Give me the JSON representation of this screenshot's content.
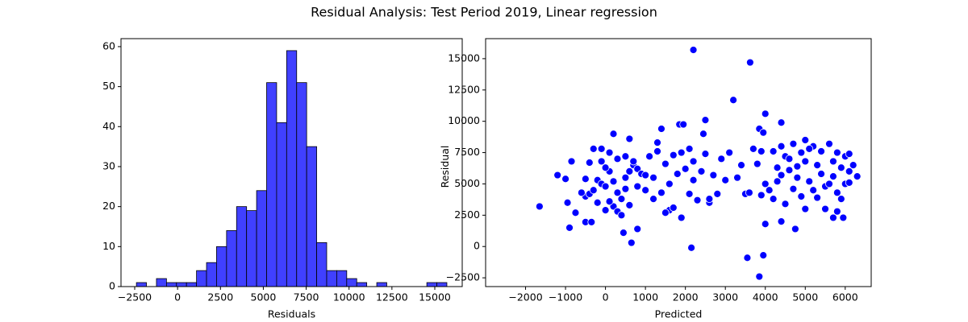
{
  "title": "Residual Analysis: Test Period 2019, Linear regression",
  "chart_data": [
    {
      "type": "histogram",
      "xlabel": "Residuals",
      "color": "#4040ff",
      "edgecolor": "#000000",
      "bins": [
        -2400,
        -1816,
        -1232,
        -648,
        -64,
        520,
        1104,
        1688,
        2272,
        2856,
        3440,
        4024,
        4608,
        5192,
        5776,
        6360,
        6944,
        7528,
        8112,
        8696,
        9280,
        9864,
        10448,
        11032,
        11616,
        12200,
        12784,
        13368,
        13952,
        14536,
        15120,
        15704
      ],
      "counts": [
        1,
        0,
        2,
        1,
        1,
        1,
        4,
        6,
        10,
        14,
        20,
        19,
        24,
        51,
        41,
        59,
        51,
        35,
        11,
        4,
        4,
        2,
        1,
        0,
        1,
        0,
        0,
        0,
        0,
        1,
        1
      ],
      "xlim": [
        -3300,
        16600
      ],
      "xticks": [
        {
          "value": -2500,
          "label": "−2500"
        },
        0,
        2500,
        5000,
        7500,
        10000,
        12500,
        15000
      ],
      "ylim": [
        0,
        62
      ],
      "yticks": [
        0,
        10,
        20,
        30,
        40,
        50,
        60
      ]
    },
    {
      "type": "scatter",
      "xlabel": "Predicted",
      "ylabel": "Residual",
      "color": "#0000ff",
      "x": [
        2200,
        3620,
        3200,
        4000,
        2500,
        3850,
        4400,
        3950,
        1400,
        1850,
        1950,
        200,
        2450,
        600,
        -1650,
        -900,
        -500,
        -350,
        450,
        650,
        800,
        2150,
        3550,
        3950,
        3850,
        4000,
        4750,
        4400,
        5700,
        5950,
        -1000,
        -1200,
        -850,
        -950,
        -750,
        1900,
        1600,
        -500,
        -400,
        -300,
        -200,
        -100,
        0,
        100,
        200,
        300,
        400,
        500,
        600,
        700,
        800,
        900,
        -300,
        -100,
        100,
        300,
        500,
        700,
        -400,
        0,
        200,
        300,
        400,
        100,
        -200,
        600,
        800,
        0,
        -600,
        -500,
        -100,
        500,
        1000,
        1100,
        1200,
        1300,
        1400,
        1500,
        1600,
        1700,
        1800,
        1900,
        2000,
        2100,
        2100,
        2200,
        2300,
        2400,
        2500,
        2600,
        2700,
        2800,
        2900,
        3000,
        3100,
        1300,
        1500,
        1700,
        2200,
        1000,
        1200,
        2600,
        3300,
        3400,
        3500,
        3600,
        3700,
        3800,
        3900,
        4000,
        4100,
        4200,
        4300,
        4400,
        4500,
        4600,
        4700,
        4800,
        4900,
        5000,
        5000,
        5100,
        5200,
        5300,
        5400,
        5500,
        5500,
        5600,
        5600,
        5700,
        5800,
        5800,
        5900,
        6000,
        6000,
        6100,
        6200,
        6300,
        4200,
        4500,
        4700,
        5300,
        5900,
        6100,
        4800,
        5100,
        4400,
        4600,
        5400,
        5700,
        5200,
        4900,
        6100,
        5000,
        4300,
        3900,
        5800
      ],
      "values": [
        15700,
        14700,
        11700,
        10600,
        10100,
        9400,
        9900,
        9100,
        9400,
        9750,
        9750,
        9000,
        9000,
        8600,
        3200,
        1500,
        1950,
        1950,
        1100,
        300,
        1400,
        -100,
        -900,
        -700,
        -2400,
        1800,
        1400,
        2000,
        2300,
        2300,
        5400,
        5700,
        6800,
        3500,
        2700,
        2300,
        2900,
        4000,
        4200,
        4500,
        5300,
        5000,
        4800,
        6000,
        5200,
        4300,
        3800,
        5500,
        6000,
        6500,
        6200,
        5800,
        7800,
        7800,
        7500,
        7000,
        7200,
        6800,
        6700,
        6300,
        3200,
        2800,
        2500,
        3600,
        3500,
        3300,
        4800,
        2900,
        4300,
        5400,
        6800,
        4600,
        4500,
        7200,
        5500,
        7600,
        4300,
        6600,
        5000,
        7300,
        5800,
        7500,
        6200,
        4200,
        7800,
        5300,
        3700,
        6000,
        7400,
        3500,
        5700,
        4200,
        7000,
        5300,
        7500,
        8300,
        2700,
        3100,
        6800,
        5700,
        3800,
        3800,
        5500,
        6500,
        4200,
        4300,
        7800,
        6600,
        7600,
        5000,
        4500,
        7600,
        6300,
        5700,
        7200,
        6100,
        8200,
        5500,
        7500,
        3000,
        6800,
        5200,
        8000,
        6500,
        7600,
        4800,
        3000,
        8200,
        5000,
        6800,
        7500,
        4300,
        6300,
        7200,
        5000,
        6000,
        6500,
        5600,
        3800,
        3400,
        4600,
        3900,
        3800,
        5100,
        6400,
        7800,
        8000,
        7000,
        5800,
        5600,
        4500,
        4000,
        7400,
        8500,
        5200,
        4100,
        2800
      ],
      "xlim": [
        -3000,
        6650
      ],
      "xticks": [
        {
          "value": -2000,
          "label": "−2000"
        },
        {
          "value": -1000,
          "label": "−1000"
        },
        0,
        1000,
        2000,
        3000,
        4000,
        5000,
        6000
      ],
      "ylim": [
        -3200,
        16600
      ],
      "yticks": [
        {
          "value": -2500,
          "label": "−2500"
        },
        0,
        2500,
        5000,
        7500,
        10000,
        12500,
        15000
      ]
    }
  ]
}
